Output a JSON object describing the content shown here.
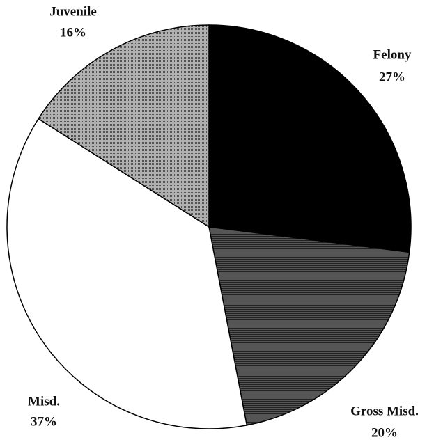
{
  "chart_data": {
    "type": "pie",
    "categories": [
      "Felony",
      "Gross Misd.",
      "Misd.",
      "Juvenile"
    ],
    "values": [
      27,
      20,
      37,
      16
    ],
    "value_labels": [
      "27%",
      "20%",
      "37%",
      "16%"
    ],
    "colors": [
      "#000000",
      "#3a3a3a",
      "#ffffff",
      "#9a9a9a"
    ]
  }
}
